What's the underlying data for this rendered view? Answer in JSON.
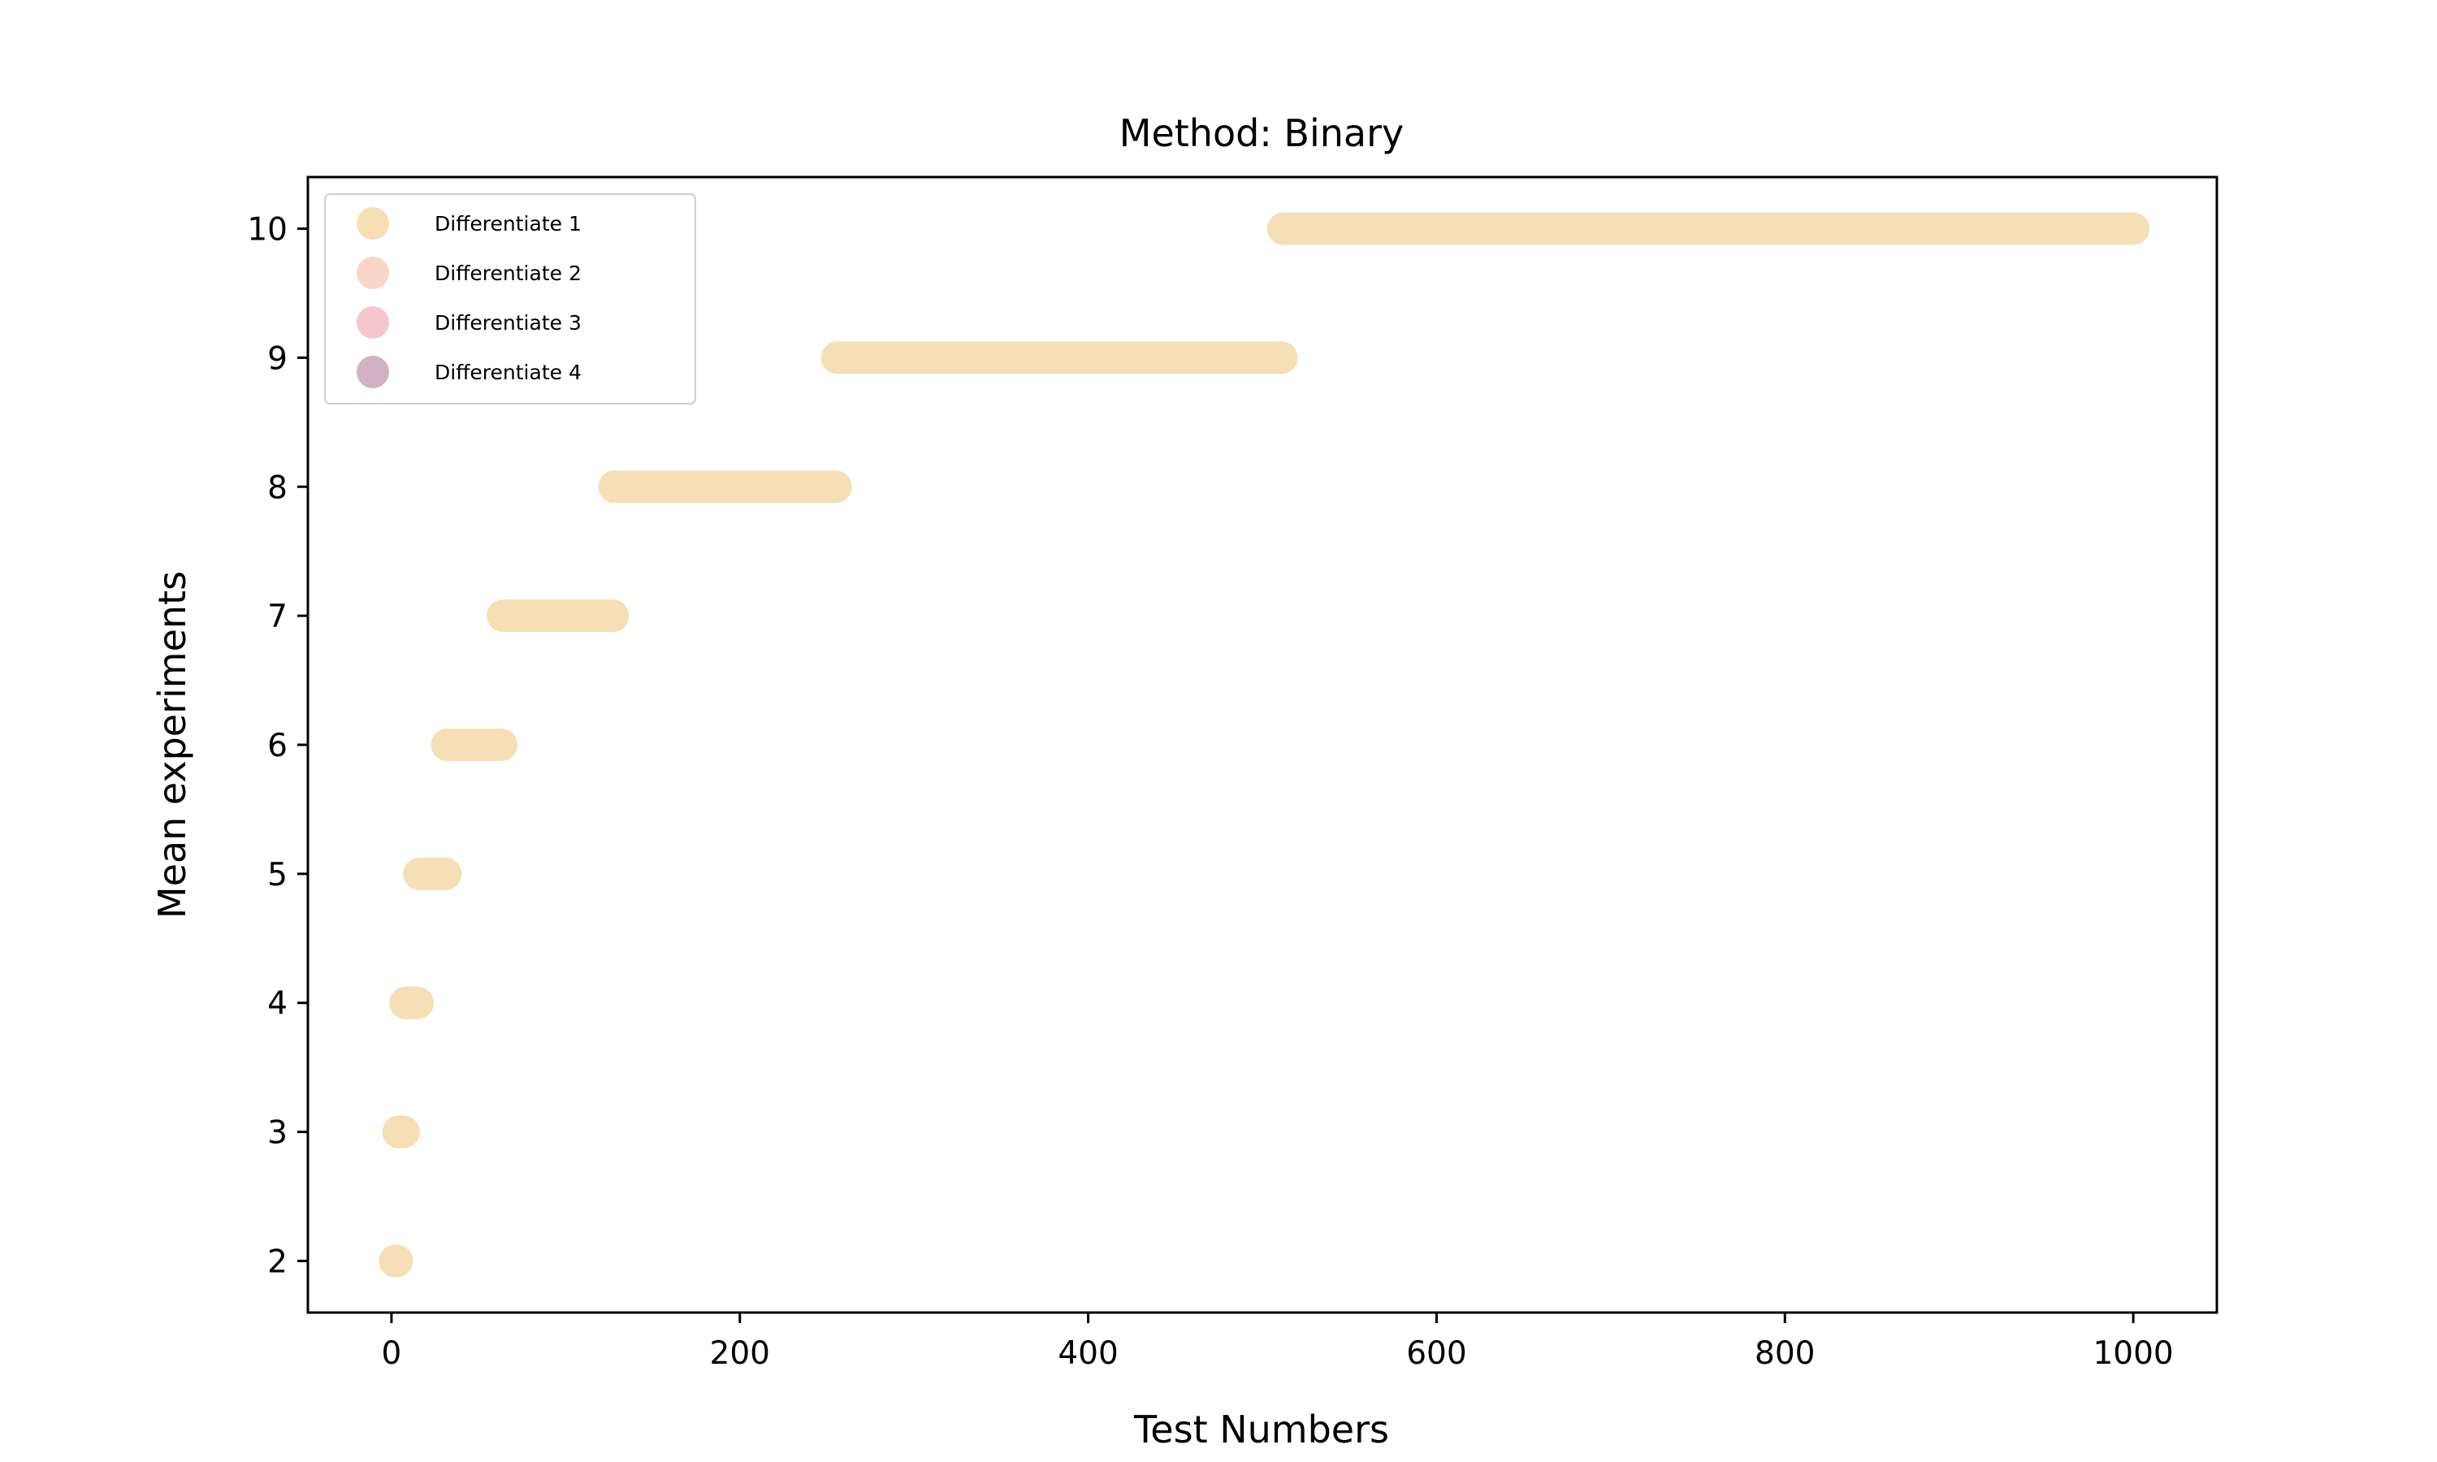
{
  "chart_data": {
    "type": "scatter",
    "title": "Method: Binary",
    "xlabel": "Test Numbers",
    "ylabel": "Mean experiments",
    "xlim": [
      -48,
      1048
    ],
    "ylim": [
      1.6,
      10.4
    ],
    "xticks": [
      0,
      200,
      400,
      600,
      800,
      1000
    ],
    "yticks": [
      2,
      3,
      4,
      5,
      6,
      7,
      8,
      9,
      10
    ],
    "grid": false,
    "legend_position": "upper-left",
    "series": [
      {
        "name": "Differentiate 1",
        "color": "#f5d9a8",
        "opacity": 0.85,
        "runs": [
          {
            "y": 2,
            "x_from": 2,
            "x_to": 3
          },
          {
            "y": 3,
            "x_from": 4,
            "x_to": 7
          },
          {
            "y": 4,
            "x_from": 8,
            "x_to": 15
          },
          {
            "y": 5,
            "x_from": 16,
            "x_to": 31
          },
          {
            "y": 6,
            "x_from": 32,
            "x_to": 63
          },
          {
            "y": 7,
            "x_from": 64,
            "x_to": 127
          },
          {
            "y": 8,
            "x_from": 128,
            "x_to": 255
          },
          {
            "y": 9,
            "x_from": 256,
            "x_to": 511
          },
          {
            "y": 10,
            "x_from": 512,
            "x_to": 1000
          }
        ]
      },
      {
        "name": "Differentiate 2",
        "color": "#f8cfbd",
        "opacity": 0.85,
        "runs": []
      },
      {
        "name": "Differentiate 3",
        "color": "#f5bcc4",
        "opacity": 0.85,
        "runs": []
      },
      {
        "name": "Differentiate 4",
        "color": "#c9a3b7",
        "opacity": 0.85,
        "runs": []
      }
    ]
  }
}
